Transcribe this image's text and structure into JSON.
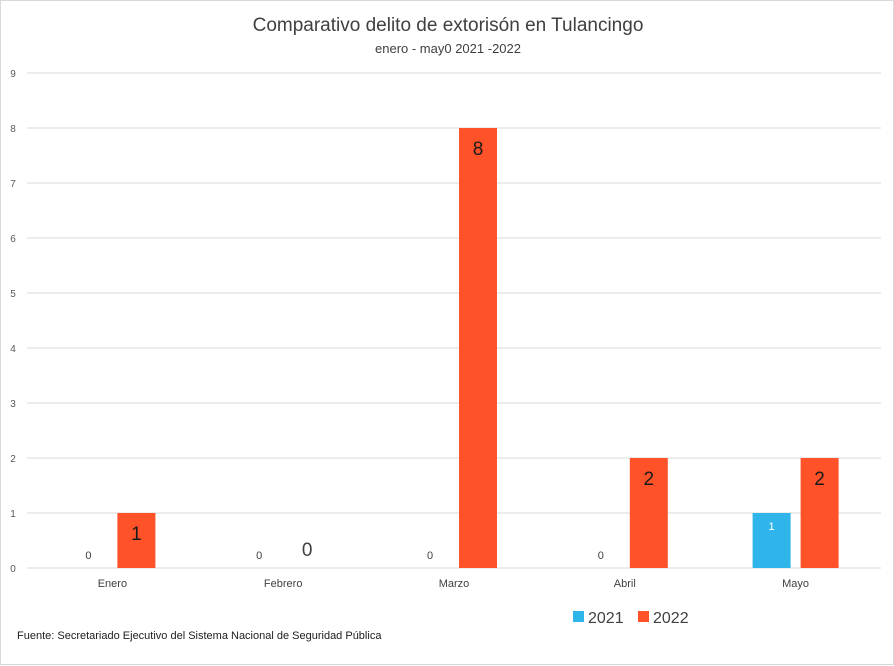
{
  "chart_data": {
    "type": "bar",
    "title": "Comparativo delito de extorisón en Tulancingo",
    "subtitle": "enero - may0 2021 -2022",
    "categories": [
      "Enero",
      "Febrero",
      "Marzo",
      "Abril",
      "Mayo"
    ],
    "series": [
      {
        "name": "2021",
        "values": [
          0,
          0,
          0,
          0,
          1
        ],
        "color": "#2fb5ea"
      },
      {
        "name": "2022",
        "values": [
          1,
          0,
          8,
          2,
          2
        ],
        "color": "#ff5228"
      }
    ],
    "ylim": [
      0,
      9
    ],
    "yticks": [
      "0",
      "1",
      "2",
      "3",
      "4",
      "5",
      "6",
      "7",
      "8",
      "9"
    ],
    "grid": true,
    "legend_position": "bottom",
    "source": "Fuente:  Secretariado Ejecutivo del Sistema Nacional de Seguridad Pública"
  }
}
